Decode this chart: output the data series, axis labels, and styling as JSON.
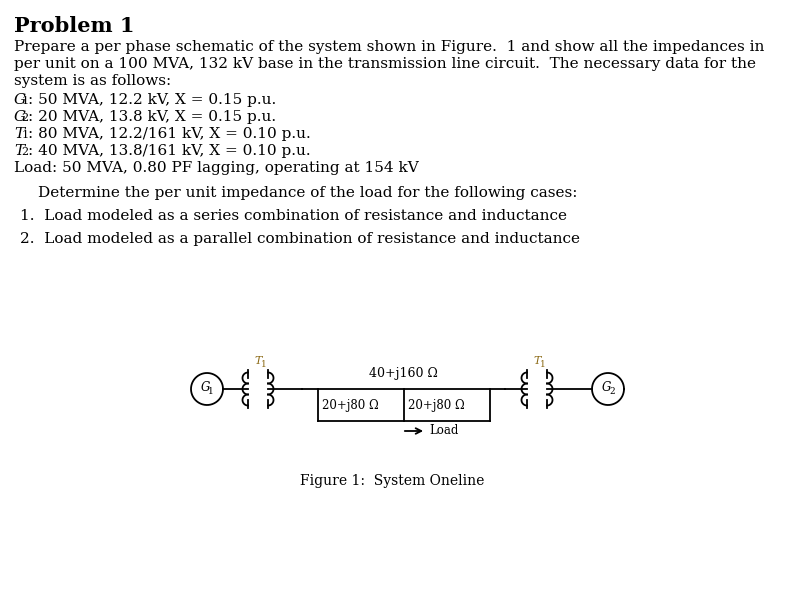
{
  "title": "Problem 1",
  "bg_color": "#ffffff",
  "text_color": "#000000",
  "para1_line1": "Prepare a per phase schematic of the system shown in Figure.  1 and show all the impedances in",
  "para1_line2": "per unit on a 100 MVA, 132 kV base in the transmission line circuit.  The necessary data for the",
  "para1_line3": "system is as follows:",
  "item_G1_pre": "G",
  "item_G1_sub": "1",
  "item_G1_rest": ": 50 MVA, 12.2 kV, X = 0.15 p.u.",
  "item_G2_pre": "G",
  "item_G2_sub": "2",
  "item_G2_rest": ": 20 MVA, 13.8 kV, X = 0.15 p.u.",
  "item_T1_pre": "T",
  "item_T1_sub": "1",
  "item_T1_rest": ": 80 MVA, 12.2/161 kV, X = 0.10 p.u.",
  "item_T2_pre": "T",
  "item_T2_sub": "2",
  "item_T2_rest": ": 40 MVA, 13.8/161 kV, X = 0.10 p.u.",
  "item_load": "Load: 50 MVA, 0.80 PF lagging, operating at 154 kV",
  "determine_text": "Determine the per unit impedance of the load for the following cases:",
  "case1": "1.  Load modeled as a series combination of resistance and inductance",
  "case2": "2.  Load modeled as a parallel combination of resistance and inductance",
  "fig_caption": "Figure 1:  System Oneline",
  "diagram": {
    "line_color": "#000000",
    "label_color": "#8B6914",
    "T1_label": "T",
    "T1_sub": "1",
    "T2_label": "T",
    "T2_sub": "1",
    "G1_label": "G",
    "G1_sub": "1",
    "G2_label": "G",
    "G2_sub": "2",
    "series_impedance": "40+j160 Ω",
    "shunt_left": "20+j80 Ω",
    "shunt_right": "20+j80 Ω",
    "load_label": "Load"
  }
}
